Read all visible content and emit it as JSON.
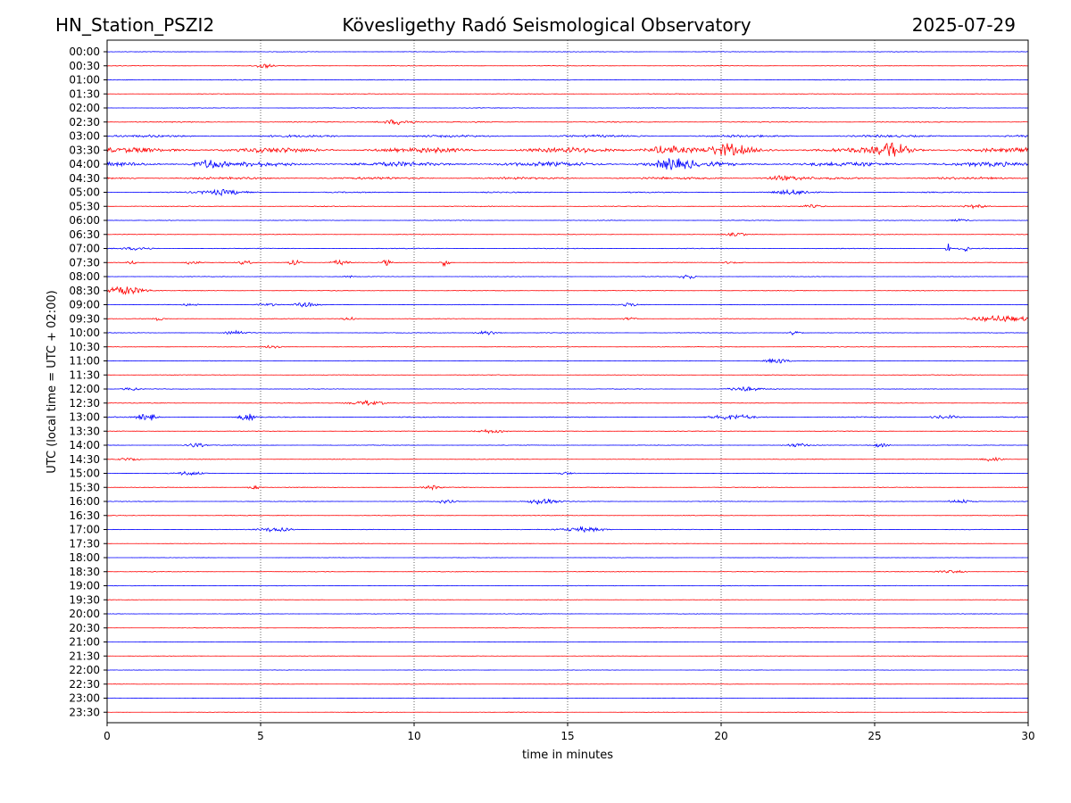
{
  "header": {
    "station": "HN_Station_PSZI2",
    "observatory": "Kövesligethy Radó Seismological Observatory",
    "date": "2025-07-29"
  },
  "chart_data": {
    "type": "line",
    "title": "Kövesligethy Radó Seismological Observatory",
    "xlabel": "time in minutes",
    "ylabel": "UTC (local time = UTC + 02:00)",
    "xlim": [
      0,
      30
    ],
    "xticks": [
      0,
      5,
      10,
      15,
      20,
      25,
      30
    ],
    "grid": "vertical-dotted",
    "trace_colors": [
      "#0000ff",
      "#ff0000"
    ],
    "rows": [
      {
        "label": "00:00",
        "color": "#0000ff",
        "level": 0.3,
        "events": []
      },
      {
        "label": "00:30",
        "color": "#ff0000",
        "level": 0.3,
        "events": [
          {
            "t": 5.1,
            "w": 0.4,
            "a": 2
          }
        ]
      },
      {
        "label": "01:00",
        "color": "#0000ff",
        "level": 0.4,
        "events": []
      },
      {
        "label": "01:30",
        "color": "#ff0000",
        "level": 0.3,
        "events": []
      },
      {
        "label": "02:00",
        "color": "#0000ff",
        "level": 0.3,
        "events": []
      },
      {
        "label": "02:30",
        "color": "#ff0000",
        "level": 0.5,
        "events": [
          {
            "t": 9.5,
            "w": 0.8,
            "a": 2.5
          }
        ]
      },
      {
        "label": "03:00",
        "color": "#0000ff",
        "level": 1.2,
        "events": []
      },
      {
        "label": "03:30",
        "color": "#ff0000",
        "level": 2.6,
        "events": [
          {
            "t": 18.2,
            "w": 0.8,
            "a": 4
          },
          {
            "t": 20.3,
            "w": 0.8,
            "a": 4
          },
          {
            "t": 25.6,
            "w": 0.6,
            "a": 6
          }
        ]
      },
      {
        "label": "04:00",
        "color": "#0000ff",
        "level": 2.3,
        "events": [
          {
            "t": 3.3,
            "w": 0.6,
            "a": 4
          },
          {
            "t": 18.4,
            "w": 1.0,
            "a": 4
          }
        ]
      },
      {
        "label": "04:30",
        "color": "#ff0000",
        "level": 1.2,
        "events": [
          {
            "t": 22.0,
            "w": 0.8,
            "a": 2
          }
        ]
      },
      {
        "label": "05:00",
        "color": "#0000ff",
        "level": 0.6,
        "events": [
          {
            "t": 3.8,
            "w": 1.0,
            "a": 2.5
          },
          {
            "t": 22.3,
            "w": 0.8,
            "a": 2
          }
        ]
      },
      {
        "label": "05:30",
        "color": "#ff0000",
        "level": 0.4,
        "events": [
          {
            "t": 23.0,
            "w": 0.5,
            "a": 1.5
          },
          {
            "t": 28.3,
            "w": 0.5,
            "a": 2
          }
        ]
      },
      {
        "label": "06:00",
        "color": "#0000ff",
        "level": 0.3,
        "events": [
          {
            "t": 27.8,
            "w": 0.5,
            "a": 1.5
          }
        ]
      },
      {
        "label": "06:30",
        "color": "#ff0000",
        "level": 0.3,
        "events": [
          {
            "t": 20.5,
            "w": 0.5,
            "a": 1.5
          }
        ]
      },
      {
        "label": "07:00",
        "color": "#0000ff",
        "level": 0.4,
        "events": [
          {
            "t": 1.0,
            "w": 0.6,
            "a": 1.5
          },
          {
            "t": 27.4,
            "w": 0.1,
            "a": 5
          },
          {
            "t": 27.9,
            "w": 0.2,
            "a": 4
          }
        ]
      },
      {
        "label": "07:30",
        "color": "#ff0000",
        "level": 0.3,
        "events": [
          {
            "t": 0.8,
            "w": 0.2,
            "a": 2
          },
          {
            "t": 2.8,
            "w": 0.3,
            "a": 2.5
          },
          {
            "t": 4.5,
            "w": 0.3,
            "a": 2
          },
          {
            "t": 6.1,
            "w": 0.3,
            "a": 2.5
          },
          {
            "t": 7.6,
            "w": 0.4,
            "a": 2.5
          },
          {
            "t": 9.1,
            "w": 0.2,
            "a": 3
          },
          {
            "t": 11.0,
            "w": 0.2,
            "a": 4
          },
          {
            "t": 20.4,
            "w": 0.4,
            "a": 1.5
          }
        ]
      },
      {
        "label": "08:00",
        "color": "#0000ff",
        "level": 0.3,
        "events": [
          {
            "t": 7.9,
            "w": 0.2,
            "a": 1.5
          },
          {
            "t": 18.9,
            "w": 0.3,
            "a": 3
          }
        ]
      },
      {
        "label": "08:30",
        "color": "#ff0000",
        "level": 0.3,
        "events": [
          {
            "t": 0.5,
            "w": 1.0,
            "a": 4.5
          }
        ]
      },
      {
        "label": "09:00",
        "color": "#0000ff",
        "level": 0.3,
        "events": [
          {
            "t": 2.7,
            "w": 0.3,
            "a": 1.5
          },
          {
            "t": 5.2,
            "w": 0.5,
            "a": 1.5
          },
          {
            "t": 6.5,
            "w": 0.5,
            "a": 2.5
          },
          {
            "t": 17.0,
            "w": 0.5,
            "a": 1.5
          }
        ]
      },
      {
        "label": "09:30",
        "color": "#ff0000",
        "level": 0.3,
        "events": [
          {
            "t": 1.7,
            "w": 0.2,
            "a": 2
          },
          {
            "t": 7.9,
            "w": 0.3,
            "a": 2
          },
          {
            "t": 17.0,
            "w": 0.3,
            "a": 1.5
          },
          {
            "t": 29.1,
            "w": 1.4,
            "a": 3
          }
        ]
      },
      {
        "label": "10:00",
        "color": "#0000ff",
        "level": 0.3,
        "events": [
          {
            "t": 4.2,
            "w": 0.5,
            "a": 2
          },
          {
            "t": 12.4,
            "w": 0.5,
            "a": 2
          },
          {
            "t": 22.4,
            "w": 0.3,
            "a": 2.5
          }
        ]
      },
      {
        "label": "10:30",
        "color": "#ff0000",
        "level": 0.3,
        "events": [
          {
            "t": 5.4,
            "w": 0.4,
            "a": 1.5
          }
        ]
      },
      {
        "label": "11:00",
        "color": "#0000ff",
        "level": 0.3,
        "events": [
          {
            "t": 21.8,
            "w": 0.5,
            "a": 2.5
          }
        ]
      },
      {
        "label": "11:30",
        "color": "#ff0000",
        "level": 0.3,
        "events": []
      },
      {
        "label": "12:00",
        "color": "#0000ff",
        "level": 0.3,
        "events": [
          {
            "t": 0.8,
            "w": 0.4,
            "a": 1.5
          },
          {
            "t": 20.8,
            "w": 0.8,
            "a": 2
          }
        ]
      },
      {
        "label": "12:30",
        "color": "#ff0000",
        "level": 0.3,
        "events": [
          {
            "t": 8.5,
            "w": 0.8,
            "a": 2.5
          }
        ]
      },
      {
        "label": "13:00",
        "color": "#0000ff",
        "level": 0.5,
        "events": [
          {
            "t": 1.3,
            "w": 0.4,
            "a": 4
          },
          {
            "t": 4.6,
            "w": 0.4,
            "a": 4
          },
          {
            "t": 20.4,
            "w": 1.0,
            "a": 2.5
          },
          {
            "t": 27.3,
            "w": 0.6,
            "a": 2
          }
        ]
      },
      {
        "label": "13:30",
        "color": "#ff0000",
        "level": 0.3,
        "events": [
          {
            "t": 12.5,
            "w": 0.7,
            "a": 2
          }
        ]
      },
      {
        "label": "14:00",
        "color": "#0000ff",
        "level": 0.3,
        "events": [
          {
            "t": 2.9,
            "w": 0.4,
            "a": 2
          },
          {
            "t": 22.5,
            "w": 0.5,
            "a": 2
          },
          {
            "t": 25.2,
            "w": 0.4,
            "a": 2
          }
        ]
      },
      {
        "label": "14:30",
        "color": "#ff0000",
        "level": 0.3,
        "events": [
          {
            "t": 0.7,
            "w": 0.5,
            "a": 1.5
          },
          {
            "t": 28.8,
            "w": 0.5,
            "a": 2
          }
        ]
      },
      {
        "label": "15:00",
        "color": "#0000ff",
        "level": 0.3,
        "events": [
          {
            "t": 2.7,
            "w": 0.6,
            "a": 2
          },
          {
            "t": 14.9,
            "w": 0.4,
            "a": 1.5
          }
        ]
      },
      {
        "label": "15:30",
        "color": "#ff0000",
        "level": 0.3,
        "events": [
          {
            "t": 4.8,
            "w": 0.3,
            "a": 1.5
          },
          {
            "t": 10.6,
            "w": 0.4,
            "a": 2
          }
        ]
      },
      {
        "label": "16:00",
        "color": "#0000ff",
        "level": 0.3,
        "events": [
          {
            "t": 11.0,
            "w": 0.5,
            "a": 1.5
          },
          {
            "t": 14.2,
            "w": 0.7,
            "a": 3
          },
          {
            "t": 27.8,
            "w": 0.6,
            "a": 2
          }
        ]
      },
      {
        "label": "16:30",
        "color": "#ff0000",
        "level": 0.3,
        "events": []
      },
      {
        "label": "17:00",
        "color": "#0000ff",
        "level": 0.3,
        "events": [
          {
            "t": 5.5,
            "w": 0.7,
            "a": 2.5
          },
          {
            "t": 15.5,
            "w": 1.0,
            "a": 2.5
          }
        ]
      },
      {
        "label": "17:30",
        "color": "#ff0000",
        "level": 0.2,
        "events": []
      },
      {
        "label": "18:00",
        "color": "#0000ff",
        "level": 0.2,
        "events": []
      },
      {
        "label": "18:30",
        "color": "#ff0000",
        "level": 0.3,
        "events": [
          {
            "t": 27.5,
            "w": 0.6,
            "a": 1.5
          }
        ]
      },
      {
        "label": "19:00",
        "color": "#0000ff",
        "level": 0.3,
        "events": []
      },
      {
        "label": "19:30",
        "color": "#ff0000",
        "level": 0.2,
        "events": []
      },
      {
        "label": "20:00",
        "color": "#0000ff",
        "level": 0.3,
        "events": []
      },
      {
        "label": "20:30",
        "color": "#ff0000",
        "level": 0.2,
        "events": []
      },
      {
        "label": "21:00",
        "color": "#0000ff",
        "level": 0.2,
        "events": []
      },
      {
        "label": "21:30",
        "color": "#ff0000",
        "level": 0.2,
        "events": []
      },
      {
        "label": "22:00",
        "color": "#0000ff",
        "level": 0.2,
        "events": []
      },
      {
        "label": "22:30",
        "color": "#ff0000",
        "level": 0.2,
        "events": []
      },
      {
        "label": "23:00",
        "color": "#0000ff",
        "level": 0.2,
        "events": []
      },
      {
        "label": "23:30",
        "color": "#ff0000",
        "level": 0.2,
        "events": []
      }
    ]
  }
}
